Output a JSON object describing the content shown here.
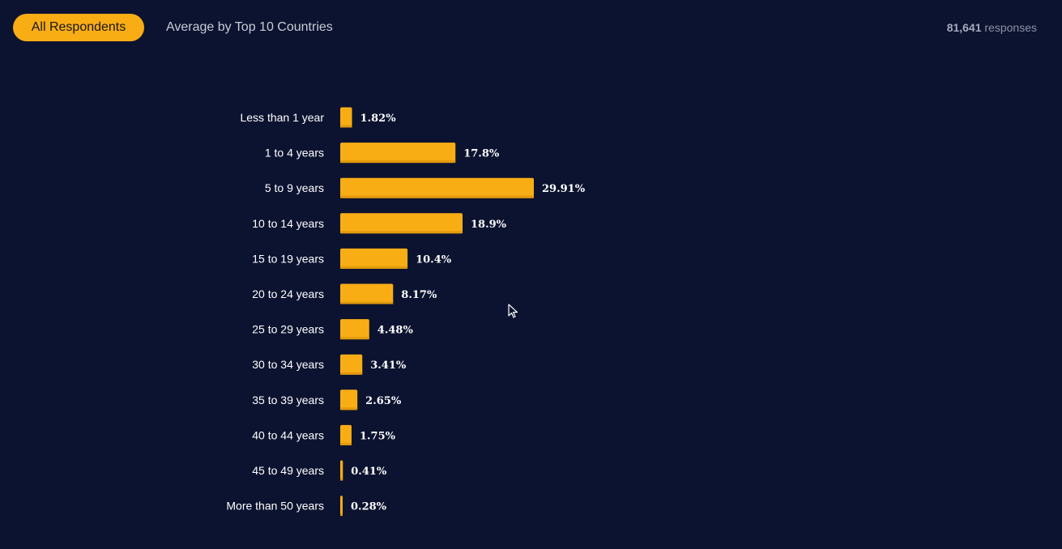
{
  "toolbar": {
    "active_tab": "All Respondents",
    "other_tab": "Average by Top 10 Countries",
    "response_count": "81,641",
    "response_label": "responses"
  },
  "colors": {
    "background": "#0c1330",
    "bar": "#f9ad15",
    "bar_shadow": "#e19a0c",
    "text": "#ffffff"
  },
  "chart_data": {
    "type": "bar",
    "orientation": "horizontal",
    "categories": [
      "Less than 1 year",
      "1 to 4 years",
      "5 to 9 years",
      "10 to 14 years",
      "15 to 19 years",
      "20 to 24 years",
      "25 to 29 years",
      "30 to 34 years",
      "35 to 39 years",
      "40 to 44 years",
      "45 to 49 years",
      "More than 50 years"
    ],
    "values": [
      1.82,
      17.8,
      29.91,
      18.9,
      10.4,
      8.17,
      4.48,
      3.41,
      2.65,
      1.75,
      0.41,
      0.28
    ],
    "value_labels": [
      "1.82%",
      "17.8%",
      "29.91%",
      "18.9%",
      "10.4%",
      "8.17%",
      "4.48%",
      "3.41%",
      "2.65%",
      "1.75%",
      "0.41%",
      "0.28%"
    ],
    "unit": "%",
    "grid": false,
    "legend": "none"
  }
}
